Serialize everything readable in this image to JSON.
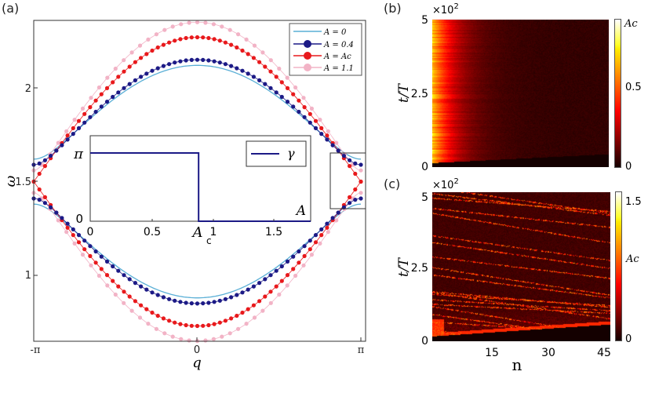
{
  "chart_data": [
    {
      "panel": "(a)",
      "type": "line",
      "xlabel": "q",
      "ylabel": "ω",
      "xlim": [
        "-π",
        "π"
      ],
      "xticks": [
        "-π",
        "0",
        "π"
      ],
      "ylim": [
        0.65,
        2.36
      ],
      "yticks": [
        "1",
        "1.5",
        "2"
      ],
      "legend_placement": "top-right",
      "series": [
        {
          "name": "A = 0",
          "color": "#5aafd6",
          "markers": false,
          "band_top": 2.12,
          "band_edge_upper": 1.62,
          "band_edge_lower": 1.38,
          "band_bottom": 0.88
        },
        {
          "name": "A = 0.4",
          "color": "#1c1a86",
          "markers": true,
          "band_top": 2.15,
          "band_edge_upper": 1.59,
          "band_edge_lower": 1.41,
          "band_bottom": 0.85
        },
        {
          "name": "A = Ac",
          "color": "#e8191c",
          "markers": true,
          "band_top": 2.27,
          "band_edge_upper": 1.5,
          "band_edge_lower": 1.5,
          "band_bottom": 0.73
        },
        {
          "name": "A = 1.1",
          "color": "#f2b3c6",
          "markers": true,
          "band_top": 2.35,
          "band_edge_upper": 1.56,
          "band_edge_lower": 1.44,
          "band_bottom": 0.65
        }
      ],
      "inset": {
        "type": "line",
        "xlabel": "A",
        "xticks": [
          "0",
          "0.5",
          "1",
          "1.5"
        ],
        "xlim": [
          0,
          1.79
        ],
        "yticks": [
          "0",
          "π"
        ],
        "critical_label": "A",
        "critical_sub": "c",
        "critical_value": 0.88,
        "legend": "γ",
        "color": "#1c1a86",
        "values_before": "π",
        "values_after": "0"
      }
    },
    {
      "panel": "(b)",
      "type": "heatmap",
      "ylabel": "t/T",
      "yticks": [
        "0",
        "2.5",
        "5"
      ],
      "y_multiplier": "×10",
      "y_multiplier_exp": "2",
      "xlim": [
        1,
        47
      ],
      "ylim": [
        0,
        500
      ],
      "colorbar_ticks": [
        "0",
        "0.5",
        "Ac"
      ],
      "colorbar_range": [
        0,
        0.88
      ]
    },
    {
      "panel": "(c)",
      "type": "heatmap",
      "xlabel": "n",
      "xticks": [
        "15",
        "30",
        "45"
      ],
      "ylabel": "t/T",
      "yticks": [
        "0",
        "2.5",
        "5"
      ],
      "y_multiplier": "×10",
      "y_multiplier_exp": "2",
      "xlim": [
        1,
        47
      ],
      "ylim": [
        0,
        500
      ],
      "colorbar_ticks": [
        "0",
        "Ac",
        "1.5"
      ],
      "colorbar_range": [
        0,
        1.6
      ]
    }
  ]
}
